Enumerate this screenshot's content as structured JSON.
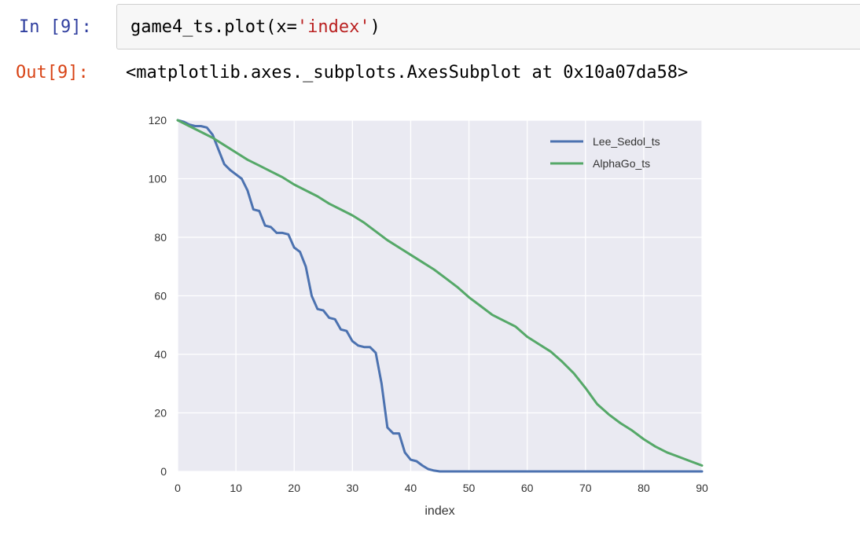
{
  "cell": {
    "in_prompt": "In [9]:",
    "code_prefix": "game4_ts.plot(x=",
    "code_string": "'index'",
    "code_suffix": ")",
    "out_prompt": "Out[9]:",
    "output_text": "<matplotlib.axes._subplots.AxesSubplot at 0x10a07da58>"
  },
  "colors": {
    "in_prompt": "#303f9f",
    "out_prompt": "#d84315",
    "string": "#ba2121",
    "plot_background": "#eaeaf2",
    "grid": "#ffffff"
  },
  "chart_data": {
    "type": "line",
    "xlabel": "index",
    "ylabel": "",
    "xlim": [
      0,
      90
    ],
    "ylim": [
      0,
      120
    ],
    "xticks": [
      "0",
      "10",
      "20",
      "30",
      "40",
      "50",
      "60",
      "70",
      "80",
      "90"
    ],
    "yticks": [
      "0",
      "20",
      "40",
      "60",
      "80",
      "100",
      "120"
    ],
    "grid": true,
    "legend_position": "top-right",
    "series": [
      {
        "name": "Lee_Sedol_ts",
        "color": "#4c72b0",
        "points": [
          [
            0,
            120
          ],
          [
            1,
            119.5
          ],
          [
            2,
            118.5
          ],
          [
            3,
            118
          ],
          [
            4,
            118
          ],
          [
            5,
            117.5
          ],
          [
            6,
            115
          ],
          [
            7,
            110
          ],
          [
            8,
            105
          ],
          [
            9,
            103
          ],
          [
            10,
            101.5
          ],
          [
            11,
            100
          ],
          [
            12,
            96
          ],
          [
            13,
            89.5
          ],
          [
            14,
            89
          ],
          [
            15,
            84
          ],
          [
            16,
            83.5
          ],
          [
            17,
            81.5
          ],
          [
            18,
            81.5
          ],
          [
            19,
            81
          ],
          [
            20,
            76.5
          ],
          [
            21,
            75
          ],
          [
            22,
            70
          ],
          [
            23,
            60
          ],
          [
            24,
            55.5
          ],
          [
            25,
            55
          ],
          [
            26,
            52.5
          ],
          [
            27,
            52
          ],
          [
            28,
            48.5
          ],
          [
            29,
            48
          ],
          [
            30,
            44.5
          ],
          [
            31,
            43
          ],
          [
            32,
            42.5
          ],
          [
            33,
            42.5
          ],
          [
            34,
            40.5
          ],
          [
            35,
            30
          ],
          [
            36,
            15
          ],
          [
            37,
            13
          ],
          [
            38,
            13
          ],
          [
            39,
            6.5
          ],
          [
            40,
            4
          ],
          [
            41,
            3.5
          ],
          [
            42,
            2
          ],
          [
            43,
            0.8
          ],
          [
            44,
            0.3
          ],
          [
            45,
            0
          ],
          [
            90,
            0
          ]
        ]
      },
      {
        "name": "AlphaGo_ts",
        "color": "#55a868",
        "points": [
          [
            0,
            120
          ],
          [
            2,
            118
          ],
          [
            4,
            116
          ],
          [
            6,
            114
          ],
          [
            8,
            111.5
          ],
          [
            10,
            109
          ],
          [
            12,
            106.5
          ],
          [
            14,
            104.5
          ],
          [
            16,
            102.5
          ],
          [
            18,
            100.5
          ],
          [
            20,
            98
          ],
          [
            22,
            96
          ],
          [
            24,
            94
          ],
          [
            26,
            91.5
          ],
          [
            28,
            89.5
          ],
          [
            30,
            87.5
          ],
          [
            32,
            85
          ],
          [
            34,
            82
          ],
          [
            36,
            79
          ],
          [
            38,
            76.5
          ],
          [
            40,
            74
          ],
          [
            42,
            71.5
          ],
          [
            44,
            69
          ],
          [
            46,
            66
          ],
          [
            48,
            63
          ],
          [
            50,
            59.5
          ],
          [
            52,
            56.5
          ],
          [
            54,
            53.5
          ],
          [
            56,
            51.5
          ],
          [
            58,
            49.5
          ],
          [
            60,
            46
          ],
          [
            62,
            43.5
          ],
          [
            64,
            41
          ],
          [
            66,
            37.5
          ],
          [
            68,
            33.5
          ],
          [
            70,
            28.5
          ],
          [
            72,
            23
          ],
          [
            74,
            19.5
          ],
          [
            76,
            16.5
          ],
          [
            78,
            14
          ],
          [
            80,
            11
          ],
          [
            82,
            8.5
          ],
          [
            84,
            6.5
          ],
          [
            86,
            5
          ],
          [
            88,
            3.5
          ],
          [
            90,
            2
          ]
        ]
      }
    ]
  }
}
